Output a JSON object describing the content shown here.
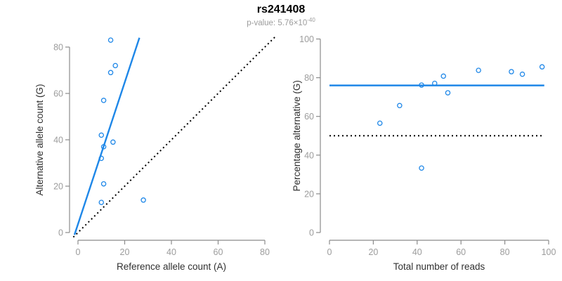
{
  "header": {
    "title": "rs241408",
    "p_value_prefix": "p-value: 5.76×10",
    "p_value_exponent": "-40"
  },
  "colors": {
    "accent_blue": "#1E87E8",
    "dotted_line": "#000000",
    "axis_line": "#8B8B8B",
    "tick_label": "#9C9C9C",
    "axis_title": "#303030"
  },
  "chart_data": [
    {
      "type": "scatter",
      "name": "allele-counts",
      "xlabel": "Reference allele count (A)",
      "ylabel": "Alternative allele count (G)",
      "xlim": [
        0,
        80
      ],
      "ylim": [
        0,
        80
      ],
      "xticks": [
        0,
        20,
        40,
        60,
        80
      ],
      "yticks": [
        0,
        20,
        40,
        60,
        80
      ],
      "grid": false,
      "points": [
        [
          14,
          83
        ],
        [
          16,
          72
        ],
        [
          14,
          69
        ],
        [
          11,
          57
        ],
        [
          10,
          42
        ],
        [
          15,
          39
        ],
        [
          11,
          37
        ],
        [
          10,
          32
        ],
        [
          11,
          21
        ],
        [
          10,
          13
        ],
        [
          28,
          14
        ]
      ],
      "lines": [
        {
          "name": "fit-line",
          "x1": -1.5,
          "y1": -1,
          "x2": 26.3,
          "y2": 84,
          "style": "solid",
          "color": "accent"
        },
        {
          "name": "identity-line",
          "x1": -2,
          "y1": -2,
          "x2": 84.5,
          "y2": 84.5,
          "style": "dotted",
          "color": "black"
        }
      ]
    },
    {
      "type": "scatter",
      "name": "percentage-vs-coverage",
      "xlabel": "Total number of reads",
      "ylabel": "Percentage alternative (G)",
      "xlim": [
        0,
        100
      ],
      "ylim": [
        0,
        100
      ],
      "xticks": [
        0,
        20,
        40,
        60,
        80,
        100
      ],
      "yticks": [
        0,
        20,
        40,
        60,
        80,
        100
      ],
      "grid": false,
      "points": [
        [
          97,
          85.6
        ],
        [
          88,
          81.8
        ],
        [
          83,
          83.1
        ],
        [
          68,
          83.8
        ],
        [
          52,
          80.8
        ],
        [
          54,
          72.2
        ],
        [
          48,
          77.1
        ],
        [
          42,
          76.2
        ],
        [
          32,
          65.6
        ],
        [
          23,
          56.5
        ],
        [
          42,
          33.3
        ]
      ],
      "lines": [
        {
          "name": "mean-percentage-line",
          "x1": 0,
          "y1": 76,
          "x2": 98,
          "y2": 76,
          "style": "solid",
          "color": "accent"
        },
        {
          "name": "fifty-percent-line",
          "x1": 0,
          "y1": 50,
          "x2": 97,
          "y2": 50,
          "style": "dotted",
          "color": "black"
        }
      ]
    }
  ]
}
